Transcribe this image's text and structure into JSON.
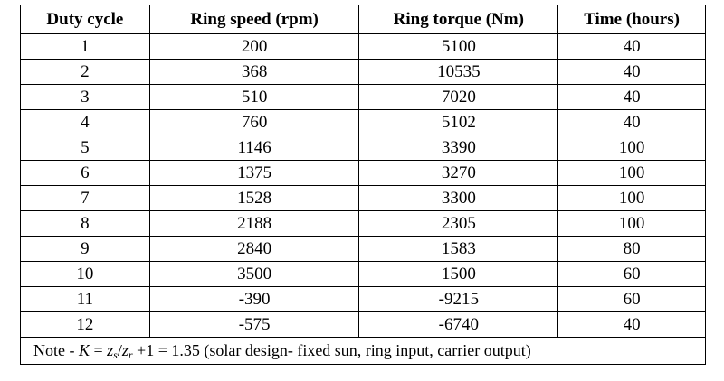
{
  "table": {
    "columns": [
      "Duty cycle",
      "Ring speed (rpm)",
      "Ring torque (Nm)",
      "Time (hours)"
    ],
    "column_widths": [
      143,
      232,
      220,
      163
    ],
    "rows": [
      [
        1,
        200,
        5100,
        40
      ],
      [
        2,
        368,
        10535,
        40
      ],
      [
        3,
        510,
        7020,
        40
      ],
      [
        4,
        760,
        5102,
        40
      ],
      [
        5,
        1146,
        3390,
        100
      ],
      [
        6,
        1375,
        3270,
        100
      ],
      [
        7,
        1528,
        3300,
        100
      ],
      [
        8,
        2188,
        2305,
        100
      ],
      [
        9,
        2840,
        1583,
        80
      ],
      [
        10,
        3500,
        1500,
        60
      ],
      [
        11,
        -390,
        -9215,
        60
      ],
      [
        12,
        -575,
        -6740,
        40
      ]
    ],
    "note": [
      {
        "text": "Note - "
      },
      {
        "text": "K",
        "style": "it"
      },
      {
        "text": " = "
      },
      {
        "text": "z",
        "style": "it"
      },
      {
        "text": "s",
        "style": "sub"
      },
      {
        "text": "/"
      },
      {
        "text": "z",
        "style": "it"
      },
      {
        "text": "r",
        "style": "sub"
      },
      {
        "text": " +1 = 1.35 (solar design- fixed sun, ring input, carrier output)"
      }
    ]
  }
}
